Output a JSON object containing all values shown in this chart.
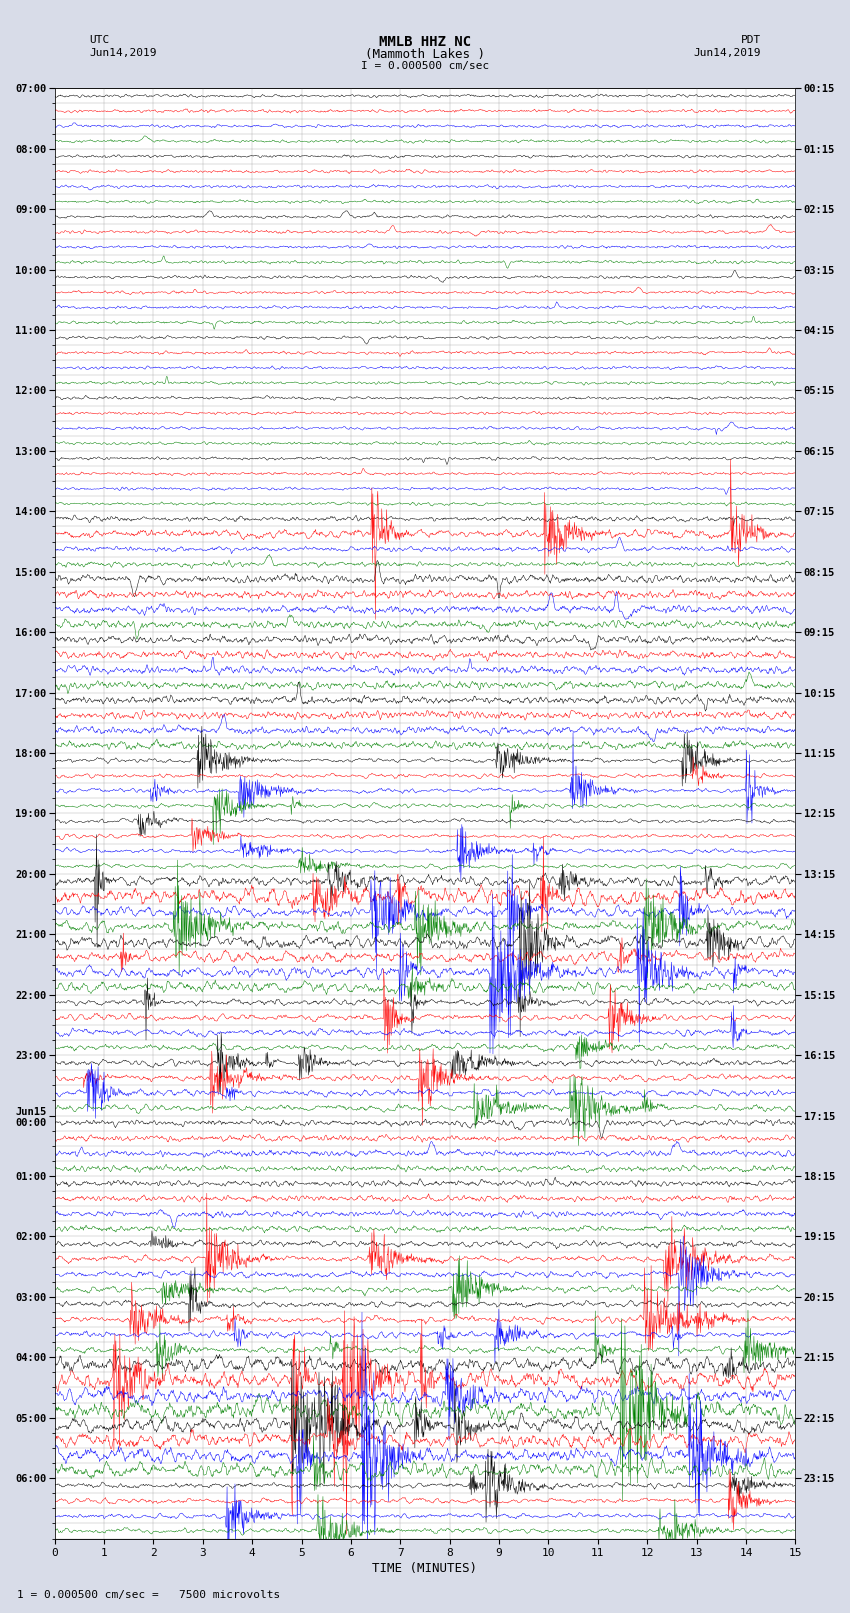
{
  "title_line1": "MMLB HHZ NC",
  "title_line2": "(Mammoth Lakes )",
  "title_scale": "I = 0.000500 cm/sec",
  "left_header_line1": "UTC",
  "left_header_line2": "Jun14,2019",
  "right_header_line1": "PDT",
  "right_header_line2": "Jun14,2019",
  "xlabel": "TIME (MINUTES)",
  "footer": "1 = 0.000500 cm/sec =   7500 microvolts",
  "utc_labels_major": [
    "07:00",
    "08:00",
    "09:00",
    "10:00",
    "11:00",
    "12:00",
    "13:00",
    "14:00",
    "15:00",
    "16:00",
    "17:00",
    "18:00",
    "19:00",
    "20:00",
    "21:00",
    "22:00",
    "23:00",
    "Jun15\n00:00",
    "01:00",
    "02:00",
    "03:00",
    "04:00",
    "05:00",
    "06:00"
  ],
  "pdt_labels_major": [
    "00:15",
    "01:15",
    "02:15",
    "03:15",
    "04:15",
    "05:15",
    "06:15",
    "07:15",
    "08:15",
    "09:15",
    "10:15",
    "11:15",
    "12:15",
    "13:15",
    "14:15",
    "15:15",
    "16:15",
    "17:15",
    "18:15",
    "19:15",
    "20:15",
    "21:15",
    "22:15",
    "23:15"
  ],
  "n_hours": 24,
  "traces_per_hour": 4,
  "n_minutes": 15,
  "colors_cycle": [
    "black",
    "red",
    "blue",
    "green"
  ],
  "background_color": "#d8dce8",
  "plot_area_color": "#ffffff",
  "grid_color": "#999999",
  "seed": 12345
}
